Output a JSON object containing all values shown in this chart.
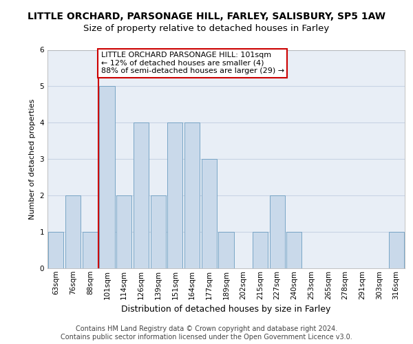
{
  "title": "LITTLE ORCHARD, PARSONAGE HILL, FARLEY, SALISBURY, SP5 1AW",
  "subtitle": "Size of property relative to detached houses in Farley",
  "xlabel": "Distribution of detached houses by size in Farley",
  "ylabel": "Number of detached properties",
  "categories": [
    "63sqm",
    "76sqm",
    "88sqm",
    "101sqm",
    "114sqm",
    "126sqm",
    "139sqm",
    "151sqm",
    "164sqm",
    "177sqm",
    "189sqm",
    "202sqm",
    "215sqm",
    "227sqm",
    "240sqm",
    "253sqm",
    "265sqm",
    "278sqm",
    "291sqm",
    "303sqm",
    "316sqm"
  ],
  "values": [
    1,
    2,
    1,
    5,
    2,
    4,
    2,
    4,
    4,
    3,
    1,
    0,
    1,
    2,
    1,
    0,
    0,
    0,
    0,
    0,
    1
  ],
  "bar_color": "#c9d9ea",
  "bar_edge_color": "#6a9cc0",
  "redline_index": 3,
  "annotation_lines": [
    "LITTLE ORCHARD PARSONAGE HILL: 101sqm",
    "← 12% of detached houses are smaller (4)",
    "88% of semi-detached houses are larger (29) →"
  ],
  "annotation_box_color": "#ffffff",
  "annotation_box_edge": "#cc0000",
  "redline_color": "#cc0000",
  "grid_color": "#c8d4e4",
  "background_color": "#e8eef6",
  "ylim": [
    0,
    6
  ],
  "yticks": [
    0,
    1,
    2,
    3,
    4,
    5,
    6
  ],
  "title_fontsize": 10,
  "subtitle_fontsize": 9.5,
  "xlabel_fontsize": 9,
  "ylabel_fontsize": 8,
  "tick_fontsize": 7.5,
  "annotation_fontsize": 8,
  "footer_fontsize": 7,
  "footer": "Contains HM Land Registry data © Crown copyright and database right 2024.\nContains public sector information licensed under the Open Government Licence v3.0."
}
